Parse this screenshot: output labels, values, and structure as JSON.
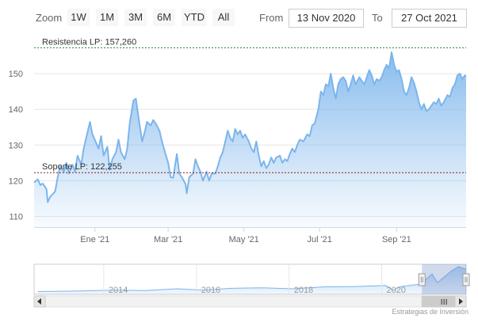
{
  "toolbar": {
    "zoom_label": "Zoom",
    "buttons": [
      "1W",
      "1M",
      "3M",
      "6M",
      "YTD",
      "All"
    ],
    "from_label": "From",
    "from_value": "13 Nov 2020",
    "to_label": "To",
    "to_value": "27 Oct 2021"
  },
  "chart_data": {
    "type": "area",
    "ylim": [
      107,
      160
    ],
    "y_ticks": [
      110,
      120,
      130,
      140,
      150
    ],
    "x_ticks": [
      {
        "date": "2021-01-01",
        "label": "Ene '21"
      },
      {
        "date": "2021-03-01",
        "label": "Mar '21"
      },
      {
        "date": "2021-05-01",
        "label": "May '21"
      },
      {
        "date": "2021-07-01",
        "label": "Jul '21"
      },
      {
        "date": "2021-09-01",
        "label": "Sep '21"
      }
    ],
    "xlim": [
      "2020-11-13",
      "2021-10-27"
    ],
    "plot_lines": [
      {
        "label": "Resistencia LP: 157,260",
        "value": 157.26,
        "color": "#2e7d32"
      },
      {
        "label": "Soporte LP: 122,255",
        "value": 122.255,
        "color": "#8b1a1a"
      }
    ],
    "series": [
      {
        "color": "#7cb5ec",
        "points": [
          [
            "2020-11-13",
            119.5
          ],
          [
            "2020-11-16",
            120.4
          ],
          [
            "2020-11-18",
            118.8
          ],
          [
            "2020-11-20",
            119.2
          ],
          [
            "2020-11-23",
            117.6
          ],
          [
            "2020-11-24",
            114.0
          ],
          [
            "2020-11-26",
            115.5
          ],
          [
            "2020-11-30",
            117.0
          ],
          [
            "2020-12-02",
            121.0
          ],
          [
            "2020-12-04",
            124.0
          ],
          [
            "2020-12-07",
            122.5
          ],
          [
            "2020-12-09",
            125.0
          ],
          [
            "2020-12-11",
            122.0
          ],
          [
            "2020-12-14",
            124.5
          ],
          [
            "2020-12-16",
            122.5
          ],
          [
            "2020-12-18",
            127.0
          ],
          [
            "2020-12-21",
            124.5
          ],
          [
            "2020-12-23",
            129.0
          ],
          [
            "2020-12-28",
            136.5
          ],
          [
            "2020-12-30",
            133.0
          ],
          [
            "2021-01-04",
            129.0
          ],
          [
            "2021-01-06",
            132.5
          ],
          [
            "2021-01-08",
            127.0
          ],
          [
            "2021-01-11",
            129.5
          ],
          [
            "2021-01-13",
            123.0
          ],
          [
            "2021-01-15",
            126.0
          ],
          [
            "2021-01-18",
            128.0
          ],
          [
            "2021-01-20",
            131.5
          ],
          [
            "2021-01-22",
            128.0
          ],
          [
            "2021-01-25",
            126.0
          ],
          [
            "2021-01-27",
            129.0
          ],
          [
            "2021-01-29",
            136.0
          ],
          [
            "2021-02-01",
            142.5
          ],
          [
            "2021-02-03",
            143.0
          ],
          [
            "2021-02-05",
            138.0
          ],
          [
            "2021-02-08",
            131.0
          ],
          [
            "2021-02-10",
            133.5
          ],
          [
            "2021-02-12",
            136.5
          ],
          [
            "2021-02-15",
            135.5
          ],
          [
            "2021-02-17",
            137.0
          ],
          [
            "2021-02-19",
            136.0
          ],
          [
            "2021-02-22",
            134.0
          ],
          [
            "2021-02-24",
            131.0
          ],
          [
            "2021-02-26",
            128.5
          ],
          [
            "2021-03-01",
            125.0
          ],
          [
            "2021-03-03",
            121.0
          ],
          [
            "2021-03-05",
            120.8
          ],
          [
            "2021-03-08",
            127.5
          ],
          [
            "2021-03-10",
            122.0
          ],
          [
            "2021-03-12",
            121.0
          ],
          [
            "2021-03-15",
            119.0
          ],
          [
            "2021-03-16",
            116.5
          ],
          [
            "2021-03-18",
            121.0
          ],
          [
            "2021-03-21",
            122.0
          ],
          [
            "2021-03-23",
            126.0
          ],
          [
            "2021-03-25",
            124.0
          ],
          [
            "2021-03-27",
            122.5
          ],
          [
            "2021-03-29",
            120.0
          ],
          [
            "2021-04-01",
            122.5
          ],
          [
            "2021-04-03",
            120.0
          ],
          [
            "2021-04-05",
            122.0
          ],
          [
            "2021-04-08",
            122.0
          ],
          [
            "2021-04-10",
            124.0
          ],
          [
            "2021-04-12",
            126.5
          ],
          [
            "2021-04-14",
            128.0
          ],
          [
            "2021-04-16",
            131.0
          ],
          [
            "2021-04-18",
            134.0
          ],
          [
            "2021-04-20",
            132.0
          ],
          [
            "2021-04-22",
            131.0
          ],
          [
            "2021-04-24",
            134.5
          ],
          [
            "2021-04-26",
            133.0
          ],
          [
            "2021-04-28",
            134.0
          ],
          [
            "2021-04-30",
            132.0
          ],
          [
            "2021-05-02",
            133.0
          ],
          [
            "2021-05-05",
            131.0
          ],
          [
            "2021-05-07",
            129.0
          ],
          [
            "2021-05-09",
            128.0
          ],
          [
            "2021-05-11",
            131.0
          ],
          [
            "2021-05-13",
            127.0
          ],
          [
            "2021-05-15",
            124.0
          ],
          [
            "2021-05-17",
            125.5
          ],
          [
            "2021-05-19",
            123.5
          ],
          [
            "2021-05-21",
            124.5
          ],
          [
            "2021-05-23",
            126.5
          ],
          [
            "2021-05-25",
            125.0
          ],
          [
            "2021-05-27",
            126.5
          ],
          [
            "2021-05-30",
            127.0
          ],
          [
            "2021-06-01",
            125.0
          ],
          [
            "2021-06-03",
            126.0
          ],
          [
            "2021-06-05",
            125.5
          ],
          [
            "2021-06-07",
            127.5
          ],
          [
            "2021-06-09",
            129.0
          ],
          [
            "2021-06-11",
            128.0
          ],
          [
            "2021-06-13",
            130.0
          ],
          [
            "2021-06-15",
            131.5
          ],
          [
            "2021-06-18",
            131.0
          ],
          [
            "2021-06-21",
            133.0
          ],
          [
            "2021-06-23",
            132.5
          ],
          [
            "2021-06-25",
            135.5
          ],
          [
            "2021-06-27",
            136.0
          ],
          [
            "2021-06-30",
            140.0
          ],
          [
            "2021-07-02",
            145.0
          ],
          [
            "2021-07-04",
            144.0
          ],
          [
            "2021-07-06",
            147.0
          ],
          [
            "2021-07-08",
            146.5
          ],
          [
            "2021-07-10",
            150.0
          ],
          [
            "2021-07-12",
            146.0
          ],
          [
            "2021-07-14",
            143.0
          ],
          [
            "2021-07-16",
            147.0
          ],
          [
            "2021-07-18",
            148.5
          ],
          [
            "2021-07-20",
            149.0
          ],
          [
            "2021-07-22",
            148.0
          ],
          [
            "2021-07-24",
            145.0
          ],
          [
            "2021-07-26",
            147.0
          ],
          [
            "2021-07-28",
            149.5
          ],
          [
            "2021-07-30",
            147.0
          ],
          [
            "2021-08-02",
            149.0
          ],
          [
            "2021-08-04",
            148.0
          ],
          [
            "2021-08-06",
            147.0
          ],
          [
            "2021-08-08",
            149.0
          ],
          [
            "2021-08-10",
            151.0
          ],
          [
            "2021-08-12",
            149.5
          ],
          [
            "2021-08-14",
            147.0
          ],
          [
            "2021-08-16",
            148.5
          ],
          [
            "2021-08-18",
            148.0
          ],
          [
            "2021-08-20",
            149.0
          ],
          [
            "2021-08-22",
            151.0
          ],
          [
            "2021-08-24",
            152.5
          ],
          [
            "2021-08-26",
            151.5
          ],
          [
            "2021-08-28",
            156.0
          ],
          [
            "2021-08-30",
            152.5
          ],
          [
            "2021-09-01",
            150.5
          ],
          [
            "2021-09-03",
            151.0
          ],
          [
            "2021-09-05",
            148.5
          ],
          [
            "2021-09-07",
            145.0
          ],
          [
            "2021-09-09",
            144.0
          ],
          [
            "2021-09-11",
            146.0
          ],
          [
            "2021-09-13",
            149.0
          ],
          [
            "2021-09-15",
            147.5
          ],
          [
            "2021-09-17",
            145.0
          ],
          [
            "2021-09-19",
            142.0
          ],
          [
            "2021-09-21",
            140.0
          ],
          [
            "2021-09-23",
            141.5
          ],
          [
            "2021-09-25",
            139.5
          ],
          [
            "2021-09-27",
            140.0
          ],
          [
            "2021-09-29",
            141.0
          ],
          [
            "2021-10-01",
            142.0
          ],
          [
            "2021-10-03",
            141.5
          ],
          [
            "2021-10-05",
            143.0
          ],
          [
            "2021-10-07",
            141.0
          ],
          [
            "2021-10-09",
            142.0
          ],
          [
            "2021-10-12",
            144.0
          ],
          [
            "2021-10-14",
            143.5
          ],
          [
            "2021-10-16",
            146.0
          ],
          [
            "2021-10-18",
            147.0
          ],
          [
            "2021-10-20",
            149.5
          ],
          [
            "2021-10-22",
            150.0
          ],
          [
            "2021-10-24",
            148.5
          ],
          [
            "2021-10-26",
            149.5
          ],
          [
            "2021-10-27",
            149.2
          ]
        ]
      }
    ],
    "navigator": {
      "x_labels": [
        "2014",
        "2016",
        "2018",
        "2020"
      ],
      "xlim": [
        "2012-07-01",
        "2021-10-27"
      ],
      "selected_range": [
        "2020-11-13",
        "2021-10-27"
      ]
    }
  },
  "credits": "Estrategias de Inversión"
}
